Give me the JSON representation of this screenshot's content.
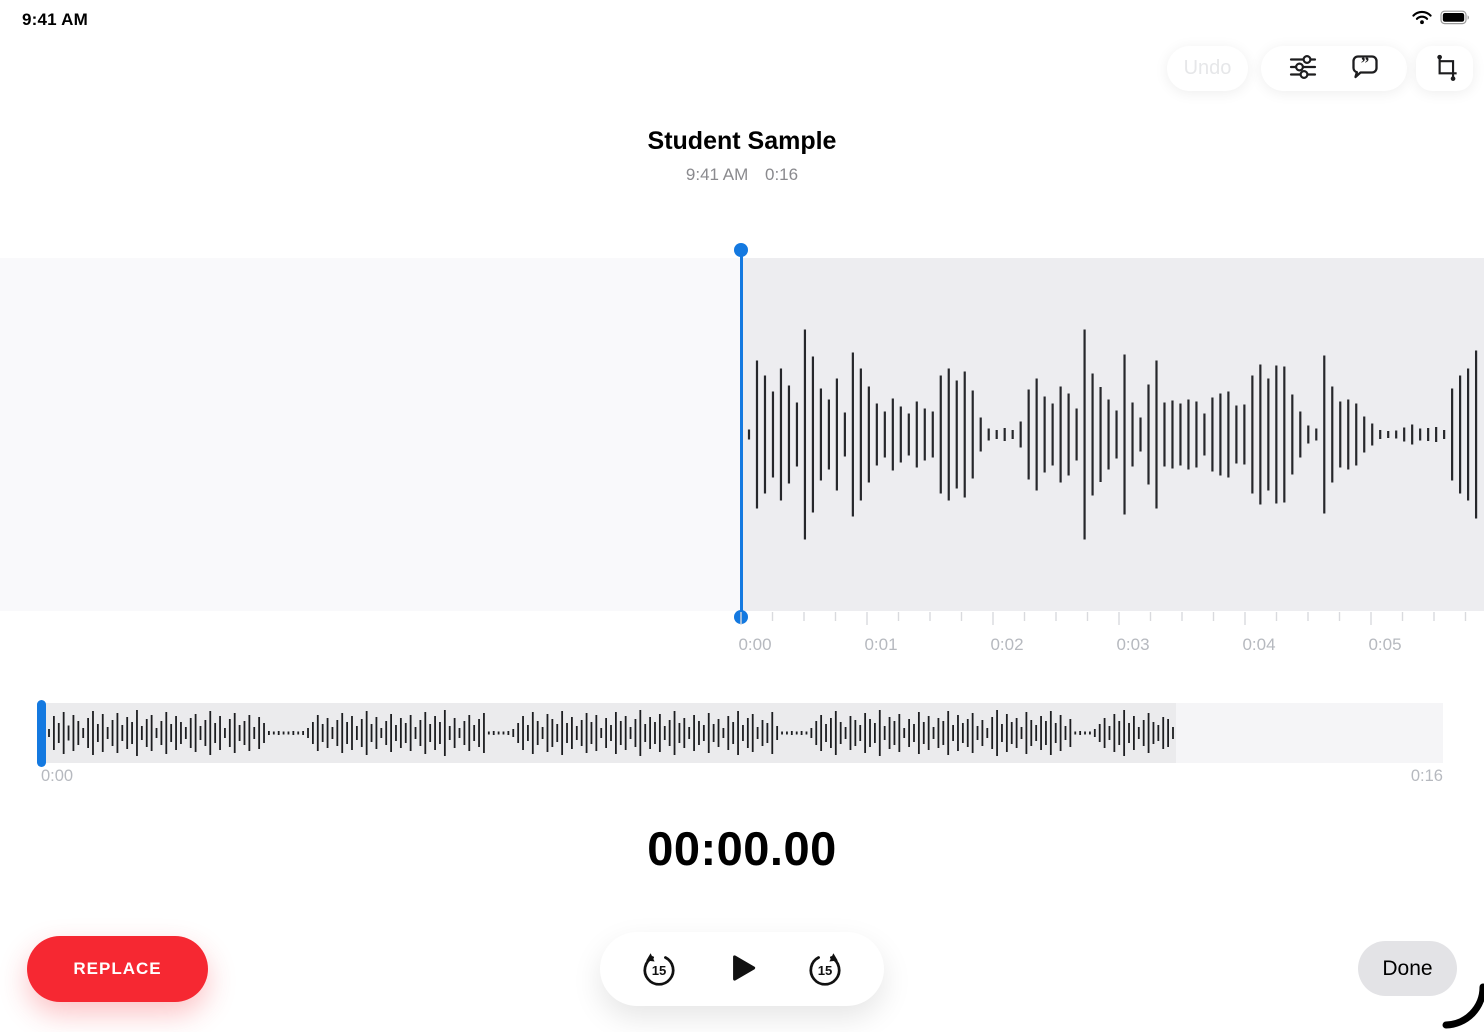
{
  "status_bar": {
    "time": "9:41 AM"
  },
  "toolbar": {
    "undo": "Undo"
  },
  "header": {
    "title": "Student Sample",
    "recorded_time": "9:41 AM",
    "duration": "0:16"
  },
  "ruler": {
    "labels": [
      "0:00",
      "0:01",
      "0:02",
      "0:03",
      "0:04",
      "0:05"
    ]
  },
  "overview": {
    "start": "0:00",
    "end": "0:16"
  },
  "player": {
    "current_time": "00:00.00",
    "skip_back_seconds": "15",
    "skip_forward_seconds": "15"
  },
  "buttons": {
    "replace": "REPLACE",
    "done": "Done"
  },
  "icons": [
    "wifi-icon",
    "battery-icon",
    "sliders-icon",
    "transcript-bubble-icon",
    "crop-icon",
    "skip-back-15-icon",
    "play-icon",
    "skip-forward-15-icon"
  ],
  "colors": {
    "accent_blue": "#1479e0",
    "replace_red": "#f62832",
    "waveform_bar": "#26272b",
    "panel_right_bg": "#ededf0",
    "panel_left_bg": "#f9f9fb",
    "tick": "#d9dade",
    "tick_label": "#b6b9bf",
    "subtitle": "#8a8a8e",
    "overview_bg": "#ebebed",
    "overview_empty_bg": "#f5f5f7",
    "done_bg": "#e3e3e6",
    "undo_disabled_text": "#e6e7e9"
  },
  "waveform": {
    "main_bars": [
      10,
      148,
      118,
      86,
      132,
      98,
      64,
      210,
      156,
      92,
      70,
      112,
      44,
      164,
      132,
      96,
      62,
      46,
      72,
      56,
      42,
      66,
      52,
      46,
      118,
      132,
      108,
      126,
      88,
      34,
      12,
      9,
      13,
      9,
      26,
      90,
      112,
      76,
      62,
      96,
      82,
      52,
      210,
      122,
      95,
      70,
      48,
      160,
      64,
      34,
      100,
      148,
      64,
      68,
      62,
      70,
      66,
      42,
      74,
      82,
      86,
      58,
      60,
      118,
      140,
      112,
      138,
      136,
      80,
      46,
      18,
      12,
      158,
      96,
      66,
      70,
      62,
      36,
      22,
      9,
      7,
      8,
      14,
      20,
      12,
      13,
      15,
      9,
      92,
      118,
      132,
      168
    ],
    "overview_bars": [
      8,
      34,
      20,
      42,
      15,
      36,
      24,
      10,
      30,
      44,
      18,
      38,
      12,
      26,
      40,
      16,
      32,
      22,
      46,
      14,
      28,
      36,
      10,
      24,
      42,
      18,
      34,
      22,
      12,
      30,
      38,
      14,
      26,
      44,
      20,
      34,
      10,
      28,
      40,
      16,
      24,
      36,
      12,
      32,
      20,
      4,
      3,
      4,
      3,
      3,
      4,
      3,
      4,
      10,
      22,
      36,
      18,
      30,
      12,
      26,
      40,
      22,
      34,
      14,
      28,
      44,
      18,
      32,
      10,
      24,
      38,
      16,
      30,
      20,
      36,
      12,
      26,
      42,
      18,
      34,
      22,
      46,
      14,
      30,
      10,
      24,
      36,
      16,
      28,
      40,
      3,
      4,
      3,
      3,
      4,
      8,
      20,
      34,
      16,
      42,
      24,
      12,
      38,
      28,
      18,
      44,
      20,
      32,
      14,
      26,
      40,
      22,
      36,
      10,
      30,
      16,
      42,
      24,
      34,
      12,
      28,
      46,
      18,
      32,
      22,
      38,
      14,
      26,
      44,
      20,
      30,
      12,
      36,
      24,
      16,
      40,
      18,
      28,
      10,
      34,
      22,
      44,
      16,
      30,
      38,
      12,
      26,
      20,
      42,
      14,
      3,
      3,
      4,
      3,
      4,
      3,
      10,
      24,
      36,
      18,
      30,
      44,
      22,
      12,
      34,
      26,
      16,
      40,
      28,
      20,
      46,
      14,
      32,
      24,
      38,
      10,
      28,
      18,
      42,
      22,
      34,
      12,
      30,
      24,
      44,
      16,
      36,
      20,
      28,
      40,
      14,
      26,
      10,
      32,
      46,
      18,
      38,
      22,
      30,
      12,
      42,
      26,
      16,
      34,
      24,
      44,
      20,
      36,
      14,
      28,
      3,
      4,
      3,
      3,
      8,
      18,
      30,
      14,
      38,
      24,
      46,
      20,
      34,
      12,
      26,
      40,
      22,
      16,
      32,
      28,
      12
    ]
  }
}
